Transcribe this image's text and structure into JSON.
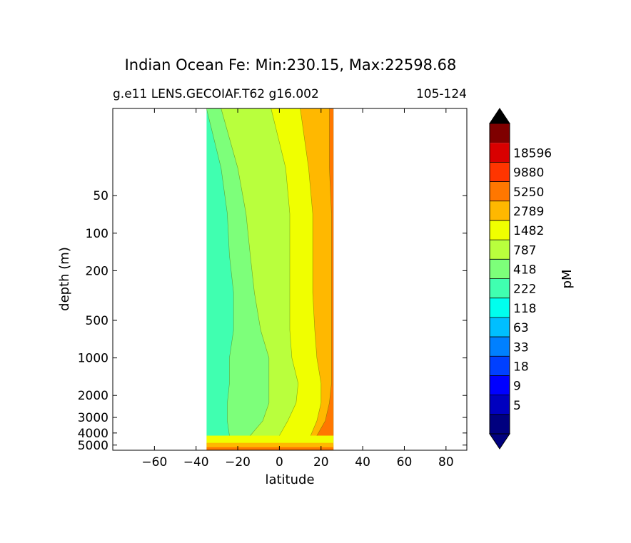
{
  "chart_data": {
    "type": "heatmap",
    "title": "Indian Ocean Fe: Min:230.15, Max:22598.68",
    "subtitle_left": "g.e11 LENS.GECOIAF.T62 g16.002",
    "subtitle_right": "105-124",
    "xlabel": "latitude",
    "ylabel": "depth (m)",
    "xlim": [
      -80,
      90
    ],
    "ylim": [
      5500,
      10
    ],
    "yscale": "log",
    "grid": false,
    "x_ticks": [
      -60,
      -40,
      -20,
      0,
      20,
      40,
      60,
      80
    ],
    "x_tick_labels": [
      "−60",
      "−40",
      "−20",
      "0",
      "20",
      "40",
      "60",
      "80"
    ],
    "y_ticks": [
      50,
      100,
      200,
      500,
      1000,
      2000,
      3000,
      4000,
      5000
    ],
    "y_tick_labels": [
      "50",
      "100",
      "200",
      "500",
      "1000",
      "2000",
      "3000",
      "4000",
      "5000"
    ],
    "data_extent": {
      "lat_min": -35,
      "lat_max": 26
    },
    "colorbar": {
      "label": "pM",
      "levels": [
        "5",
        "9",
        "18",
        "33",
        "63",
        "118",
        "222",
        "418",
        "787",
        "1482",
        "2789",
        "5250",
        "9880",
        "18596"
      ],
      "colors": [
        "#00007f",
        "#0000bf",
        "#0000ff",
        "#0040ff",
        "#0080ff",
        "#00bfff",
        "#00ffee",
        "#40ffb0",
        "#7dff7a",
        "#b9ff3d",
        "#f0ff00",
        "#ffb800",
        "#ff7700",
        "#ff3500",
        "#d90000",
        "#7f0000"
      ],
      "extend_below_color": "#00007f",
      "extend_above_color": "#000000"
    },
    "bands": [
      {
        "value_class": 7,
        "color": "#7dff7a",
        "x": [
          -35,
          -28,
          -25,
          -24,
          -22,
          -22,
          -24,
          -24,
          -25,
          -25,
          -24,
          -35
        ]
      },
      {
        "value_class": 8,
        "color": "#b9ff3d",
        "x": [
          -28,
          -20,
          -16,
          -14,
          -12,
          -9,
          -5,
          -5,
          -5,
          -8,
          -14,
          -35
        ]
      },
      {
        "value_class": 9,
        "color": "#f0ff00",
        "x": [
          -4,
          3,
          5,
          5,
          5,
          5,
          6,
          9,
          8,
          4,
          0,
          -5
        ]
      },
      {
        "value_class": 10,
        "color": "#ffb800",
        "x": [
          10,
          14,
          16,
          16,
          16,
          17,
          18,
          20,
          20,
          18,
          15,
          10
        ]
      },
      {
        "value_class": 11,
        "color": "#ff7700",
        "x": [
          24,
          24,
          25,
          25,
          25,
          25,
          25,
          25,
          24,
          22,
          18,
          6
        ]
      }
    ],
    "band_depths": [
      10,
      30,
      70,
      150,
      300,
      600,
      1000,
      1600,
      2300,
      3200,
      4200,
      5500
    ],
    "deep_layers": [
      {
        "color": "#f0ff00",
        "depth_top": 4200,
        "depth_bottom": 5000
      },
      {
        "color": "#ffb800",
        "depth_top": 4800,
        "depth_bottom": 5300
      },
      {
        "color": "#ff7700",
        "depth_top": 5200,
        "depth_bottom": 5500
      }
    ]
  }
}
